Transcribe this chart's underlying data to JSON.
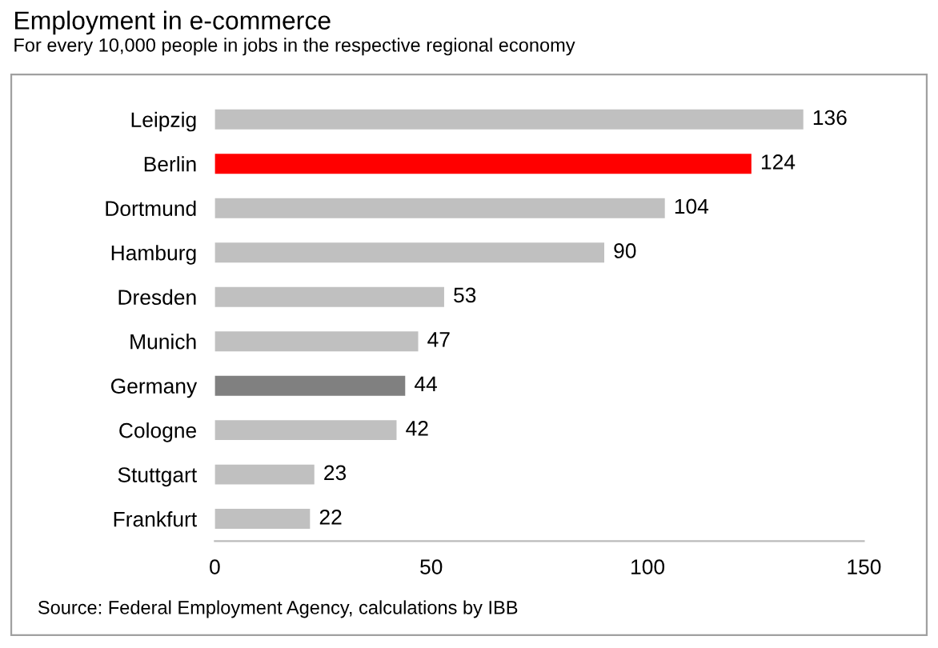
{
  "chart_data": {
    "type": "bar",
    "orientation": "horizontal",
    "title": "Employment in e-commerce",
    "subtitle": "For every 10,000 people in jobs in the respective regional economy",
    "categories": [
      "Leipzig",
      "Berlin",
      "Dortmund",
      "Hamburg",
      "Dresden",
      "Munich",
      "Germany",
      "Cologne",
      "Stuttgart",
      "Frankfurt"
    ],
    "values": [
      136,
      124,
      104,
      90,
      53,
      47,
      44,
      42,
      23,
      22
    ],
    "colors": [
      "#c0c0c0",
      "#ff0000",
      "#c0c0c0",
      "#c0c0c0",
      "#c0c0c0",
      "#c0c0c0",
      "#808080",
      "#c0c0c0",
      "#c0c0c0",
      "#c0c0c0"
    ],
    "xlim": [
      0,
      150
    ],
    "xticks": [
      0,
      50,
      100,
      150
    ],
    "grid": false,
    "legend": false,
    "data_labels": true,
    "annotations": [
      "Source: Federal Employment Agency, calculations by IBB"
    ]
  }
}
